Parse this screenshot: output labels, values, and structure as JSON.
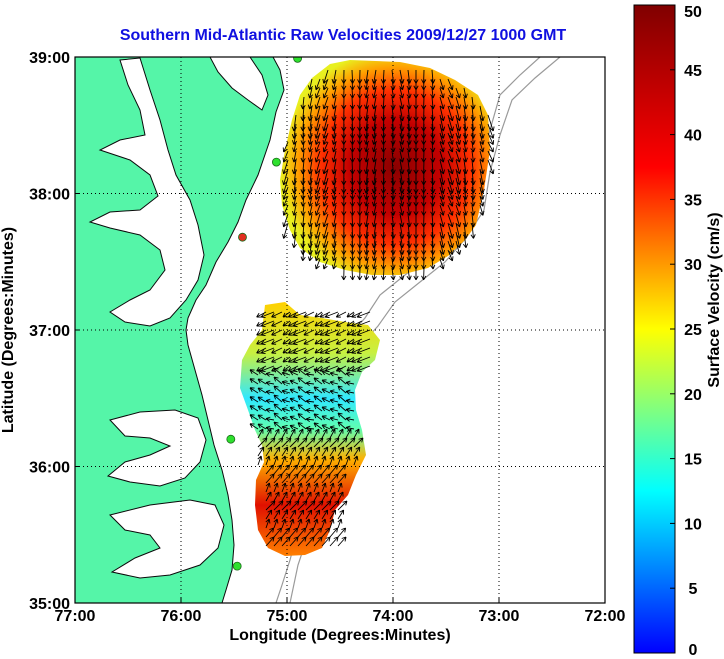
{
  "chart_data": {
    "type": "heatmap",
    "title": "Southern Mid-Atlantic Raw Velocities 2009/12/27 1000 GMT",
    "xlabel": "Longitude (Degrees:Minutes)",
    "ylabel": "Latitude (Degrees:Minutes)",
    "colorbar_label": "Surface Velocity (cm/s)",
    "xlim": [
      -77,
      -72
    ],
    "ylim": [
      35,
      39
    ],
    "x_ticks": [
      {
        "value": -77,
        "label": "77:00"
      },
      {
        "value": -76,
        "label": "76:00"
      },
      {
        "value": -75,
        "label": "75:00"
      },
      {
        "value": -74,
        "label": "74:00"
      },
      {
        "value": -73,
        "label": "73:00"
      },
      {
        "value": -72,
        "label": "72:00"
      }
    ],
    "y_ticks": [
      {
        "value": 35,
        "label": "35:00"
      },
      {
        "value": 36,
        "label": "36:00"
      },
      {
        "value": 37,
        "label": "37:00"
      },
      {
        "value": 38,
        "label": "38:00"
      },
      {
        "value": 39,
        "label": "39:00"
      }
    ],
    "colorbar_range": [
      0,
      50
    ],
    "colorbar_ticks": [
      0,
      5,
      10,
      15,
      20,
      25,
      30,
      35,
      40,
      45,
      50
    ],
    "grid": true,
    "colors": {
      "land": "#55f5a8",
      "title": "#1010e0",
      "grid": "#000000",
      "bathymetry": "#9a9a9a",
      "station_green": "#2ee02e",
      "station_red": "#e03020"
    },
    "fields": [
      {
        "name": "northern cluster",
        "center_lon": -74.1,
        "center_lat": 38.35,
        "extent_lon": [
          -75.15,
          -72.95
        ],
        "extent_lat": [
          37.45,
          39.0
        ],
        "peak_speed": 50,
        "edge_speed": 25,
        "direction": "southward"
      },
      {
        "name": "southern cluster",
        "center_lon": -74.8,
        "center_lat": 36.1,
        "extent_lon": [
          -75.5,
          -74.0
        ],
        "extent_lat": [
          35.45,
          37.2
        ],
        "peak_speed": 45,
        "low_speed": 13,
        "direction": "mixed"
      }
    ],
    "stations": [
      {
        "lon": -74.9,
        "lat": 38.99,
        "color": "green"
      },
      {
        "lon": -75.1,
        "lat": 38.23,
        "color": "green"
      },
      {
        "lon": -75.42,
        "lat": 37.68,
        "color": "red"
      },
      {
        "lon": -75.53,
        "lat": 36.2,
        "color": "green"
      },
      {
        "lon": -75.47,
        "lat": 35.27,
        "color": "green"
      }
    ]
  }
}
